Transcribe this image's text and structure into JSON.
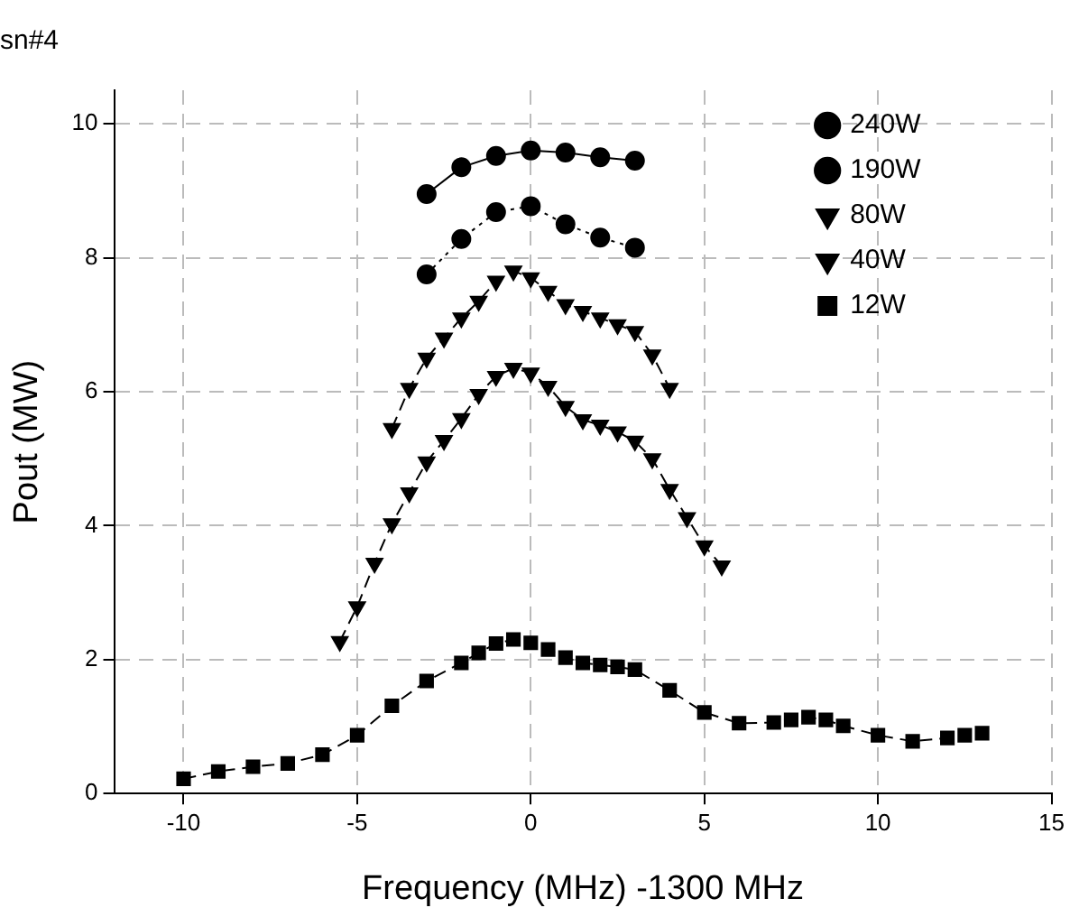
{
  "chart_data": {
    "type": "line",
    "title": "sn#4",
    "xlabel": "Frequency (MHz) -1300 MHz",
    "ylabel": "Pout (MW)",
    "xlim": [
      -12,
      15
    ],
    "xticks": [
      -10,
      -5,
      0,
      5,
      10,
      15
    ],
    "ylim": [
      0,
      10.5
    ],
    "yticks": [
      0,
      2,
      4,
      6,
      8,
      10
    ],
    "grid": true,
    "legend": "top right",
    "series": [
      {
        "name": "240W",
        "color": "#000000",
        "marker": "circle",
        "line_style": "solid",
        "x": [
          -3,
          -2,
          -1,
          0,
          1,
          2,
          3
        ],
        "values": [
          8.95,
          9.35,
          9.52,
          9.6,
          9.57,
          9.5,
          9.45
        ]
      },
      {
        "name": "190W",
        "color": "#000000",
        "marker": "circle",
        "line_style": "dotted",
        "x": [
          -3,
          -2,
          -1,
          0,
          1,
          2,
          3
        ],
        "values": [
          7.75,
          8.28,
          8.68,
          8.77,
          8.5,
          8.3,
          8.15
        ]
      },
      {
        "name": "80W",
        "color": "#000000",
        "marker": "triangle",
        "line_style": "dashed",
        "x": [
          -4,
          -3.5,
          -3,
          -2.5,
          -2,
          -1.5,
          -1,
          -0.5,
          0,
          0.5,
          1,
          1.5,
          2,
          2.5,
          3,
          3.5,
          4
        ],
        "values": [
          5.45,
          6.05,
          6.5,
          6.8,
          7.1,
          7.35,
          7.65,
          7.8,
          7.7,
          7.5,
          7.3,
          7.2,
          7.1,
          7.0,
          6.9,
          6.55,
          6.05
        ]
      },
      {
        "name": "40W",
        "color": "#000000",
        "marker": "triangle",
        "line_style": "dashed",
        "x": [
          -5.5,
          -5,
          -4.5,
          -4,
          -3.5,
          -3,
          -2.5,
          -2,
          -1.5,
          -1,
          -0.5,
          0,
          0.5,
          1,
          1.5,
          2,
          2.5,
          3,
          3.5,
          4,
          4.5,
          5,
          5.5
        ],
        "values": [
          2.27,
          2.79,
          3.44,
          4.03,
          4.49,
          4.95,
          5.27,
          5.6,
          5.96,
          6.23,
          6.35,
          6.28,
          6.08,
          5.78,
          5.58,
          5.5,
          5.4,
          5.26,
          5.0,
          4.54,
          4.12,
          3.7,
          3.4
        ]
      },
      {
        "name": "12W",
        "color": "#000000",
        "marker": "square",
        "line_style": "dashed",
        "x": [
          -10,
          -9,
          -8,
          -7,
          -6,
          -5,
          -4,
          -3,
          -2,
          -1.5,
          -1,
          -0.5,
          0,
          0.5,
          1,
          1.5,
          2,
          2.5,
          3,
          4,
          5,
          6,
          7,
          7.5,
          8,
          8.5,
          9,
          10,
          11,
          12,
          12.5,
          13
        ],
        "values": [
          0.22,
          0.33,
          0.4,
          0.45,
          0.58,
          0.87,
          1.31,
          1.68,
          1.95,
          2.1,
          2.24,
          2.3,
          2.25,
          2.15,
          2.03,
          1.95,
          1.92,
          1.89,
          1.85,
          1.54,
          1.21,
          1.05,
          1.06,
          1.1,
          1.14,
          1.1,
          1.01,
          0.87,
          0.78,
          0.83,
          0.87,
          0.9
        ]
      }
    ]
  }
}
